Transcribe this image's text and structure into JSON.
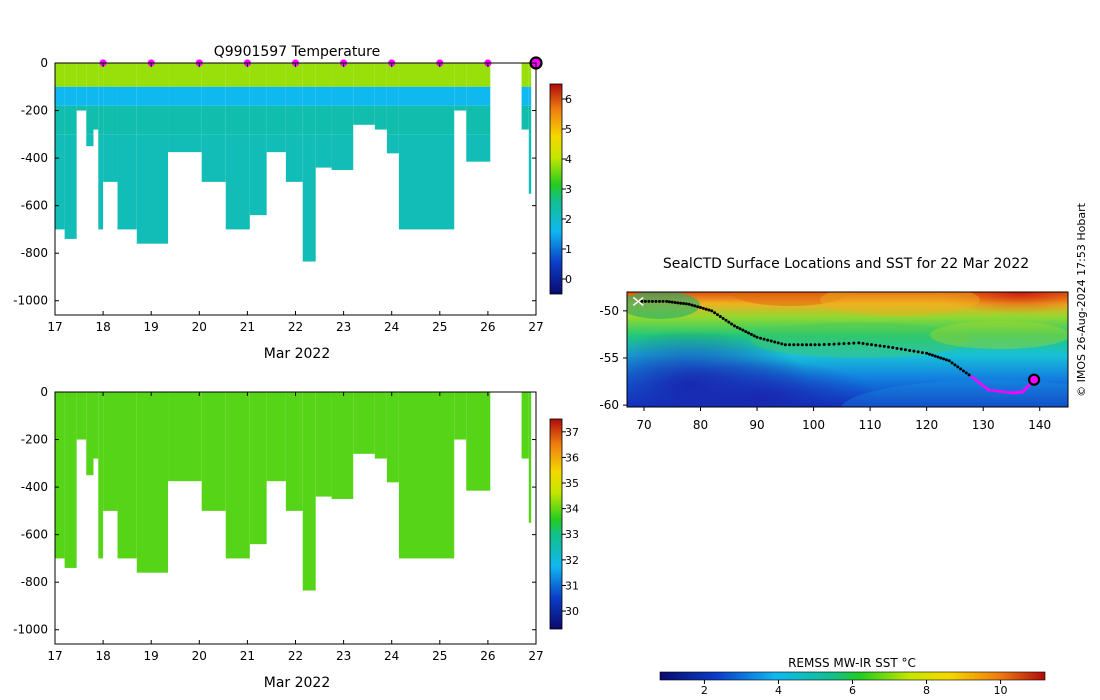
{
  "profiles": {
    "title": "Q9901597  Temperature",
    "month_label": "Mar 2022",
    "x_ticks": [
      "17",
      "18",
      "19",
      "20",
      "21",
      "22",
      "23",
      "24",
      "25",
      "26",
      "27"
    ],
    "x_tick_values": [
      17,
      18,
      19,
      20,
      21,
      22,
      23,
      24,
      25,
      26,
      27
    ],
    "y_ticks": [
      "0",
      "-200",
      "-400",
      "-600",
      "-800",
      "-1000"
    ],
    "y_tick_values": [
      0,
      -200,
      -400,
      -600,
      -800,
      -1000
    ],
    "temp_colorbar_ticks": [
      "0",
      "1",
      "2",
      "3",
      "4",
      "5",
      "6"
    ],
    "temp_colorbar_range": [
      -0.5,
      6.5
    ],
    "sal_colorbar_ticks": [
      "30",
      "31",
      "32",
      "33",
      "34",
      "35",
      "36",
      "37"
    ],
    "sal_colorbar_range": [
      29.3,
      37.5
    ],
    "marker_color": "#ff00ff"
  },
  "map": {
    "title": "SealCTD Surface Locations and SST for 22 Mar 2022",
    "lon_ticks": [
      "70",
      "80",
      "90",
      "100",
      "110",
      "120",
      "130",
      "140"
    ],
    "lon_tick_values": [
      70,
      80,
      90,
      100,
      110,
      120,
      130,
      140
    ],
    "lat_ticks": [
      "-50",
      "-55",
      "-60"
    ],
    "lat_tick_values": [
      -50,
      -55,
      -60
    ],
    "colorbar_label": "REMSS MW-IR SST °C",
    "colorbar_ticks": [
      "2",
      "4",
      "6",
      "8",
      "10"
    ],
    "colorbar_range": [
      0.8,
      11.2
    ],
    "credit": "© IMOS 26-Aug-2024 17:53 Hobart"
  },
  "chart_data": [
    {
      "type": "heatmap",
      "title": "Q9901597  Temperature",
      "xlabel": "Mar 2022",
      "ylabel": "",
      "xlim": [
        17,
        27
      ],
      "ylim": [
        -1060,
        0
      ],
      "profile_max_depth_m": [
        {
          "start": 17.0,
          "end": 17.2,
          "depth": 700
        },
        {
          "start": 17.2,
          "end": 17.45,
          "depth": 740
        },
        {
          "start": 17.45,
          "end": 17.65,
          "depth": 200
        },
        {
          "start": 17.65,
          "end": 17.8,
          "depth": 350
        },
        {
          "start": 17.8,
          "end": 17.9,
          "depth": 280
        },
        {
          "start": 17.9,
          "end": 18.0,
          "depth": 700
        },
        {
          "start": 18.0,
          "end": 18.3,
          "depth": 500
        },
        {
          "start": 18.3,
          "end": 18.7,
          "depth": 700
        },
        {
          "start": 18.7,
          "end": 19.35,
          "depth": 760
        },
        {
          "start": 19.35,
          "end": 20.05,
          "depth": 375
        },
        {
          "start": 20.05,
          "end": 20.55,
          "depth": 500
        },
        {
          "start": 20.55,
          "end": 21.05,
          "depth": 700
        },
        {
          "start": 21.05,
          "end": 21.4,
          "depth": 640
        },
        {
          "start": 21.4,
          "end": 21.8,
          "depth": 375
        },
        {
          "start": 21.8,
          "end": 22.15,
          "depth": 500
        },
        {
          "start": 22.15,
          "end": 22.42,
          "depth": 835
        },
        {
          "start": 22.42,
          "end": 22.75,
          "depth": 440
        },
        {
          "start": 22.75,
          "end": 23.2,
          "depth": 450
        },
        {
          "start": 23.2,
          "end": 23.65,
          "depth": 260
        },
        {
          "start": 23.65,
          "end": 23.9,
          "depth": 280
        },
        {
          "start": 23.9,
          "end": 24.15,
          "depth": 380
        },
        {
          "start": 24.15,
          "end": 25.3,
          "depth": 700
        },
        {
          "start": 25.3,
          "end": 25.55,
          "depth": 200
        },
        {
          "start": 25.55,
          "end": 26.05,
          "depth": 415
        },
        {
          "start": 26.7,
          "end": 26.85,
          "depth": 280
        },
        {
          "start": 26.85,
          "end": 26.9,
          "depth": 550
        }
      ],
      "temperature_layers_c": [
        {
          "top": 0,
          "bottom": 100,
          "value": 3.8
        },
        {
          "top": 100,
          "bottom": 180,
          "value": 1.6
        },
        {
          "top": 180,
          "bottom": 300,
          "value": 2.3
        },
        {
          "top": 300,
          "bottom": 1000,
          "value": 2.2
        }
      ],
      "surface_markers": [
        18,
        19,
        20,
        21,
        22,
        23,
        24,
        25,
        26
      ],
      "latest_marker": 27
    },
    {
      "type": "heatmap",
      "title": "",
      "xlabel": "Mar 2022",
      "ylabel": "",
      "xlim": [
        17,
        27
      ],
      "ylim": [
        -1060,
        0
      ],
      "salinity_value": 33.9
    },
    {
      "type": "scatter",
      "title": "SealCTD Surface Locations and SST for 22 Mar 2022",
      "xlabel": "",
      "ylabel": "",
      "xlim": [
        67,
        145
      ],
      "ylim": [
        -60.2,
        -48
      ],
      "track": [
        {
          "lon": 69,
          "lat": -49
        },
        {
          "lon": 74,
          "lat": -49.0
        },
        {
          "lon": 78,
          "lat": -49.3
        },
        {
          "lon": 82,
          "lat": -50.0
        },
        {
          "lon": 86,
          "lat": -51.6
        },
        {
          "lon": 90,
          "lat": -52.8
        },
        {
          "lon": 95,
          "lat": -53.6
        },
        {
          "lon": 101,
          "lat": -53.6
        },
        {
          "lon": 108,
          "lat": -53.4
        },
        {
          "lon": 114,
          "lat": -53.9
        },
        {
          "lon": 120,
          "lat": -54.5
        },
        {
          "lon": 124,
          "lat": -55.3
        },
        {
          "lon": 128,
          "lat": -57.0
        },
        {
          "lon": 131,
          "lat": -58.4
        },
        {
          "lon": 135,
          "lat": -58.7
        },
        {
          "lon": 137,
          "lat": -58.6
        },
        {
          "lon": 139,
          "lat": -57.3
        }
      ],
      "current_position": {
        "lon": 139,
        "lat": -57.3
      }
    }
  ]
}
